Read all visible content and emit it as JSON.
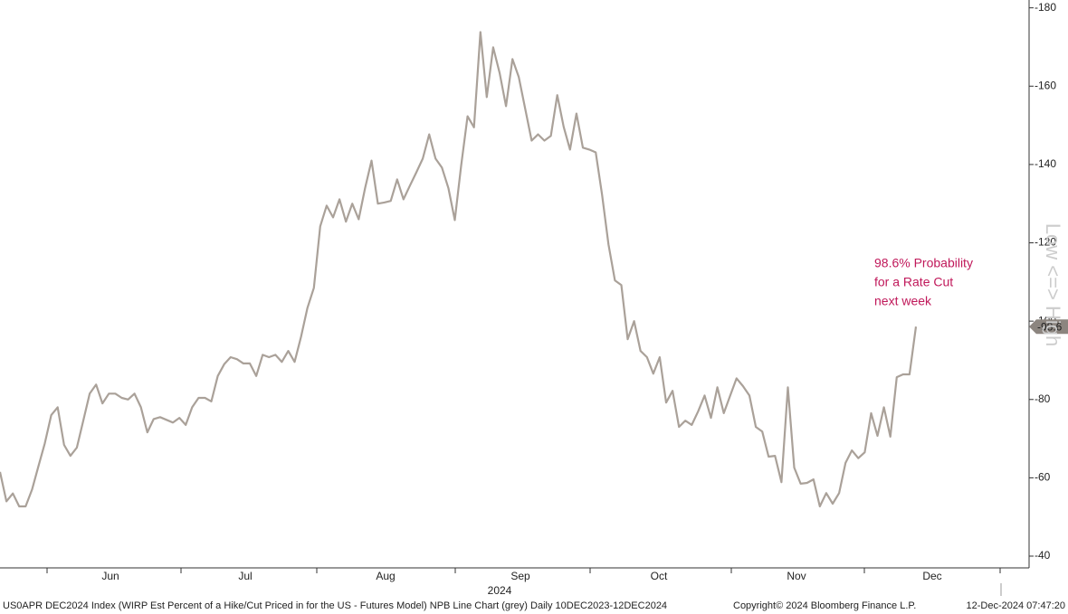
{
  "chart_data": {
    "type": "line",
    "x_labels": [
      "Jun",
      "Jul",
      "Aug",
      "Sep",
      "Oct",
      "Nov",
      "Dec"
    ],
    "year_label": "2024",
    "y_axis_label": "Low <=> High",
    "annotation": [
      "98.6% Probability",
      "for a Rate Cut",
      "next week"
    ],
    "footer": [
      "US0APR DEC2024 Index (WIRP Est Percent of a Hike/Cut Priced in for the US - Futures Model) NPB Line Chart (grey)  Daily 10DEC2023-12DEC2024",
      "Copyright© 2024 Bloomberg Finance L.P.",
      "12-Dec-2024 07:47:20"
    ],
    "ylim": [
      -37,
      -182
    ],
    "yticks": [
      -180,
      -160,
      -140,
      -120,
      -100,
      -80,
      -60,
      -40
    ],
    "series": [
      {
        "name": "US0APR DEC2024 Index",
        "color": "#aaa199",
        "values": [
          -61.5,
          -54,
          -56,
          -52.7,
          -52.7,
          -57,
          -63,
          -68.8,
          -76,
          -78,
          -68.4,
          -65.6,
          -67.7,
          -74.6,
          -81.5,
          -83.8,
          -79,
          -81.5,
          -81.5,
          -80.4,
          -80,
          -81.5,
          -78,
          -71.6,
          -75,
          -75.5,
          -74.8,
          -74.1,
          -75.3,
          -73.5,
          -78,
          -80.4,
          -80.4,
          -79.5,
          -86,
          -89,
          -90.8,
          -90.3,
          -89.2,
          -89.2,
          -86,
          -91.4,
          -90.8,
          -91.4,
          -89.6,
          -92.4,
          -89.6,
          -96,
          -103.4,
          -108.5,
          -124.2,
          -129.5,
          -126.5,
          -131.1,
          -125.4,
          -130,
          -126,
          -134,
          -141,
          -130,
          -130.3,
          -130.7,
          -136.2,
          -131.1,
          -134.6,
          -138,
          -141.5,
          -147.7,
          -141.5,
          -139.2,
          -134,
          -125.8,
          -139.7,
          -152.3,
          -149.5,
          -173.8,
          -157.2,
          -169.9,
          -163.4,
          -154.9,
          -166.9,
          -162.3,
          -154.2,
          -146.1,
          -147.7,
          -146.1,
          -147.3,
          -157.7,
          -149.6,
          -143.8,
          -153,
          -144.3,
          -143.8,
          -143.1,
          -132.3,
          -119.6,
          -110.4,
          -109.2,
          -95.4,
          -100,
          -92.4,
          -90.8,
          -86.6,
          -90.8,
          -79.2,
          -82.2,
          -73,
          -74.6,
          -73.5,
          -77,
          -81,
          -75.3,
          -83.1,
          -76.5,
          -81,
          -85.4,
          -83.4,
          -81,
          -73,
          -71.8,
          -65.4,
          -65.6,
          -58.9,
          -83.1,
          -62.6,
          -58.5,
          -58.7,
          -59.6,
          -52.7,
          -56.1,
          -53.4,
          -56.1,
          -63.8,
          -67,
          -65,
          -66.5,
          -76.5,
          -70.7,
          -78,
          -70.5,
          -85.7,
          -86.4,
          -86.4,
          -98.6
        ]
      }
    ]
  }
}
